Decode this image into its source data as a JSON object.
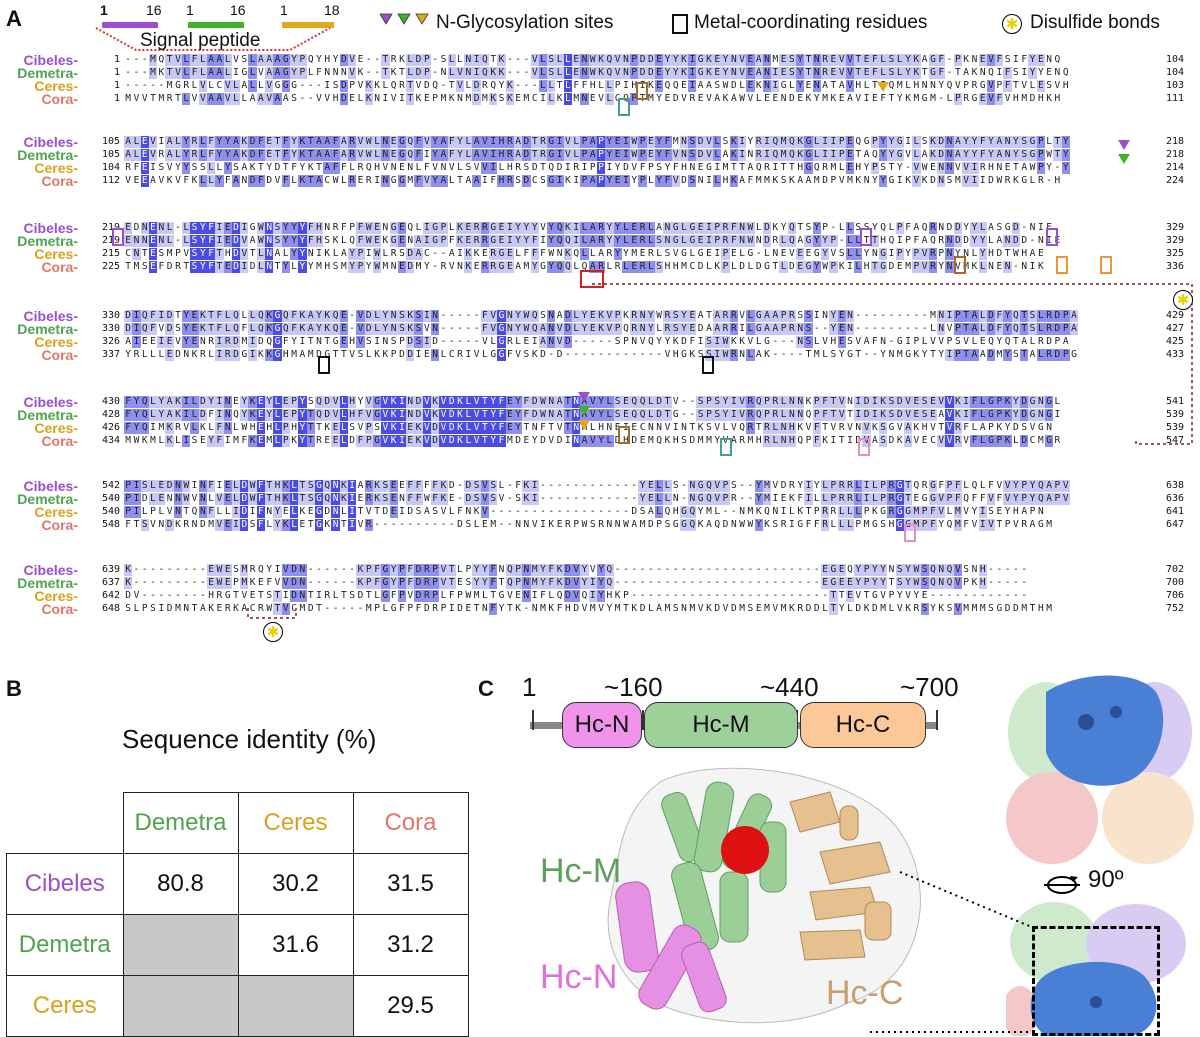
{
  "panels": {
    "a": "A",
    "b": "B",
    "c": "C"
  },
  "legend": {
    "signal_peptide": "Signal peptide",
    "glyco": "N-Glycosylation sites",
    "metal": "Metal-coordinating residues",
    "disulfide": "Disulfide bonds",
    "bars": [
      {
        "start": "1",
        "end": "16",
        "color": "#9b4fd0"
      },
      {
        "start": "1",
        "end": "16",
        "color": "#3fb22a"
      },
      {
        "start": "1",
        "end": "18",
        "color": "#e0a91c"
      }
    ]
  },
  "colors": {
    "cibeles": "#9b4fd0",
    "demetra": "#4fa34f",
    "ceres": "#d9a21a",
    "cora": "#e0766a",
    "metal_cyan": "#4a9a9a",
    "metal_brown": "#a36a2a",
    "metal_red": "#cc2222",
    "metal_black": "#111111",
    "metal_pink": "#e88cc4",
    "metal_orange": "#e8963a",
    "signal_red": "#e03030",
    "disulfide_link": "#8b1a1a"
  },
  "alignment": {
    "names": [
      "Cibeles-",
      "Demetra-",
      "Ceres-",
      "Cora-"
    ],
    "blocks": [
      {
        "starts": [
          "1",
          "1",
          "1",
          "1"
        ],
        "ends": [
          "104",
          "104",
          "103",
          "111"
        ],
        "seqs": [
          "---MQTVLFLAALVSLAAAGYPQYHYDVE--TRKLDP-SLLNIQTK---VLSLLENWKQVNPDDEYYKIGKEYNVEANMESYTNREVVTEFLSLYKAGF-PKNEVFSIFYENQ",
          "---MKTVLFLAALIGLVAAGYPLFNNNVK--TKTLDP-NLVNIQKK---VLSLLENWKQVNPDDEYYKIGKEYNVEANIESYTNREVVTEFLSLYKTGF-TAKNQIFSIYYENQ",
          "-----MGRLVLCVLALLVGGG---ISDPVKKLQRTVDQ-TVLDRQYK---LLTLFFHLLPIHIKEQQEIAASWDLEKNIGLYENATAVHLTIQMLHNNYQVPRGVPFTVLESVH",
          "MVVTMRTLVVAAVLLAAVAAS--VVHDELKNIVITKEPMKNMDMKSKEMCILKLMNEVLCQPTMYEDVREVAKAWVLEENDEKYMKEAVIEFTYKMGM-LPRGEVFVHMDHKH"
        ]
      },
      {
        "starts": [
          "105",
          "105",
          "104",
          "112"
        ],
        "ends": [
          "218",
          "218",
          "214",
          "224"
        ],
        "seqs": [
          "ALEVIALYRLFYYAKDFETFYKTAAFARVWLNEGQFVYAFYLAVIHRADTRGIVLPAPYEIWPEYFMNSDVLSKIYRIQMQKGLIIPEQGPYYGILSKDNAYYFYANYSGPLTY",
          "ALEVRALYRLFYYAKDFETFYKTAAFARVWLNEGQFIYAFYLAVIHRADTRGIVLPAPYEIWPEYFVNSDVLAKINRIQMQKGLIIPETAQYYGVLAKDNAYYFYANYSGPWTY",
          "RFEISVYYSSLLYSAKTYDTFYKTAFFLRQHVNENLFVNVLSVVILHRSDTQDIRIPPIYDVFPSYFHNEGIMTTAQRITTHGQRMLEHYPSTY-VWENNVVIRHNETAWPY-Y",
          "VEEAVKVFKLLYFANDFDVFLKTACWLRERINGGMFVYALTAAIFHRSDCSGIKIPAPYEIYPLYFVDSNILHKAFMMKSKAAMDPVMKNYYGIKVKDNSMVIIDWRKGLR-H"
        ]
      },
      {
        "starts": [
          "219",
          "219",
          "215",
          "225"
        ],
        "ends": [
          "329",
          "329",
          "325",
          "336"
        ],
        "seqs": [
          "EDNENL-LSYFIEDIGWNSYYYFHNRFPFWENGEQLIGPLKERRGEIYYYVYQKILARYYLERLANGLGEIPRFNWLDKYQTSYP-LLSSYQLPFAQRNDDYYLASGD-NIE",
          "ENNENL-LSYFIEDVAWNSYYYFHSKLQFWEKGENAIGPFKERRGEIYYFIYQQILARYYLERLSNGLGEIPRFNWNDRLQAGYYP-LLTTHQIPFAQRNDDYYLANDD-NIE",
          "CNTESMPVSYFTHDVTLNALYYNIKLAYPIWLRSDAC--AIKKERGELFFFWNKQLLARYYMERLSVGLGEIPELG-LNEVEEGYVSLLYNGIPYPVRPNYNLYHDTWHAE",
          "TMSEFDRTSYFTEDIDLNTYLYYMHSMYPYWMNEDMY-RVNKERRGEAMYGYQQLQARLRLERLSHHMCDLKPLDLDGTLDEGYWPKILHTGDEMPVRYNVMKLNEN-NIK"
        ]
      },
      {
        "starts": [
          "330",
          "330",
          "326",
          "337"
        ],
        "ends": [
          "429",
          "427",
          "425",
          "433"
        ],
        "seqs": [
          "DIQFIDTYEKTFLQLLQKGQFKAYKQE-VDLYNSKSIN-----FVGNYWQSNADLYEKVPKRNYWRSYEATARRVLGAAPRSSINYEN---------MNIPTALDFYQTSLRDPA",
          "DIQFVDSYEKTFLQFLQKGQFKAYKQE-VDLYNSKSVN-----FVGNYWQANVDLYEKVPQRNYLRSYEDAARRILGAAPRNS--YEN---------LNVPTALDFYQTSLRDPA",
          "AIEEIEVYENRIRDMIDQGFYITNTGEHVSINSPDSID-----VLGRLEIANVD-----SPNVQYYKDFISIWKKVLG---NSLVHESVAFN-GIPLVVPSVLEQYQTALRDPA",
          "YRLLLEDNKRLIRDGIKKGHMAMDGTTVSLKKPDDIENLCRIVLGGFVSKD-D------------VHGKSSIWRNLAK----TMLSYGT--YNMGKYTYIPTAADMYSTALRDPG"
        ]
      },
      {
        "starts": [
          "430",
          "428",
          "426",
          "434"
        ],
        "ends": [
          "541",
          "539",
          "539",
          "547"
        ],
        "seqs": [
          "FYQLYAKILDYINEYKEYLEPYSQDVLHYVGVKINDVKVDKLVTYFEYFDWNATNAVYLSEQQLDTV--SPSYIVRQPRLNNKPFTVNIDIKSDVESEVVKIFLGPKYDGNGL",
          "FYQLYAKILDFINQYKEYLEPYTQDVLHFVGVKINDVKVDKLVTYFEYFDWNATNAVYLSEQQLDTG--SPSYIVRQPRLNNQPFTVTIDIKSDVESEAVKIFLGPKYDGNGI",
          "FYQIMKRVLKLFNLWHEHLPHYTTKELSVPSVKIEKVDVDKLVTYFEYTNFTVTNHLHNEIECNNVINTKSVLVQRTRLNHKVFTVRVNVKSGVAKHVTVRFLAPKYDSVGN",
          "MWKMLKLISEYFIMFKEMLPKYTREELDFPGVKIEKVDVDKLVTYFMDEYDVDINAVYLDHDEMQKHSDMMYVARMHRLNHQPFKITIDVASDKAVECVVRVFLGPKLDCMGR"
        ]
      },
      {
        "starts": [
          "542",
          "540",
          "540",
          "548"
        ],
        "ends": [
          "638",
          "636",
          "641",
          "647"
        ],
        "seqs": [
          "PISLEDNWINFIELDWFTHKLTSGQNKIARKSEEFFFFKD-DSVSL-FKI------------YELLS-NGQVPS--YMVDRYIYLPRRLILPRGTQRGFPFLQLFVVYPYQAPV",
          "PIDLENNWVNLVELDWFTHKLTSGQNKIERKSENFFWFKE-DSVSV-SKI------------YELLN-NGQVPR--YMIEKFILLPRRLILPRGTEGGVPFQFFVFVYPYQAPV",
          "PILPLVNTQNFLLIDIFNYELKEGDNLITVTDEIDSASVLFNKV-----------------DSALQHGQYML--NMKQNILKTPRRLLLPKGRGGMPFVLMVYISEYHAPN",
          "FTSVNDKRNDMVEIDSFLYKLETGKNTIVR----------DSLEM--NNVIKERPWSRNNWAMDPSGGQKAQDNWWYKSRIGFFRLLLPMGSHGGMPFYQMFVIVTPVRAGM"
        ]
      },
      {
        "starts": [
          "639",
          "637",
          "642",
          "648"
        ],
        "ends": [
          "702",
          "700",
          "706",
          "752"
        ],
        "seqs": [
          "K---------EWESMRQYIVDN------KPFGYPFDRPVTLPYYFNQPNMYFKDVYVYQ-------------------------EGEQYPYYNSYWSQNQVSNH-----",
          "K---------EWEPMKEFVVDN------KPFGYPFDRPVTESYYFTQPNMYFKDVYIYQ-------------------------EGEEYPYYTSYWSQNQVPKH-----",
          "DV--------HRGTVETSTIDNTIRLTSDTLGFPVDRPLFPWMLTGVENIFLQDVQIYHKP------------------------TTEVTGVPYVYE------------",
          "SLPSIDMNTAKERKACRWTVCMDT-----MPLGFPFDRPIDETNFYTK-NMKFHDVMVYMTKDLAMSNMVKDVDMSEMVMKRDDLTYLDKDMLVKRSYKSVMMMSGDDMTHM"
        ]
      }
    ]
  },
  "identity_table": {
    "title": "Sequence identity (%)",
    "columns": [
      "Demetra",
      "Ceres",
      "Cora"
    ],
    "rows": [
      {
        "label": "Cibeles",
        "values": [
          "80.8",
          "30.2",
          "31.5"
        ]
      },
      {
        "label": "Demetra",
        "values": [
          "",
          "31.6",
          "31.2"
        ]
      },
      {
        "label": "Ceres",
        "values": [
          "",
          "",
          "29.5"
        ]
      }
    ]
  },
  "domains": {
    "positions": [
      "1",
      "~160",
      "~440",
      "~700"
    ],
    "boxes": [
      {
        "label": "Hc-N",
        "color": "#f093ea"
      },
      {
        "label": "Hc-M",
        "color": "#9ed09a"
      },
      {
        "label": "Hc-C",
        "color": "#fcc898"
      }
    ]
  },
  "structure": {
    "label_m": "Hc-M",
    "label_n": "Hc-N",
    "label_c": "Hc-C",
    "rotation": "90º",
    "color_m": "#5e9f5e",
    "color_n": "#e070d8",
    "color_c": "#c8a070"
  }
}
